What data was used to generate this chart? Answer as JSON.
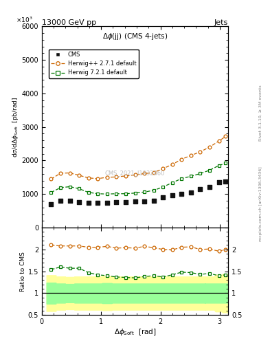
{
  "title_top": "13000 GeV pp",
  "title_right": "Jets",
  "plot_title": "Δϕ(jj) (CMS 4-jets)",
  "watermark": "CMS_2021_I1932460",
  "side_label": "Rivet 3.1.10, ≥ 3M events",
  "side_label2": "mcplots.cern.ch [arXiv:1306.3436]",
  "xlim": [
    0,
    3.14159
  ],
  "ylim_main": [
    0,
    6000
  ],
  "ylim_ratio": [
    0.5,
    2.5
  ],
  "yticks_main": [
    0,
    1000,
    2000,
    3000,
    4000,
    5000,
    6000
  ],
  "yticks_ratio": [
    0.5,
    1.0,
    1.5,
    2.0
  ],
  "x_data": [
    0.157,
    0.314,
    0.471,
    0.628,
    0.785,
    0.942,
    1.099,
    1.257,
    1.414,
    1.571,
    1.728,
    1.885,
    2.042,
    2.199,
    2.356,
    2.513,
    2.67,
    2.827,
    2.985,
    3.1
  ],
  "cms_y": [
    700,
    800,
    800,
    750,
    730,
    730,
    730,
    760,
    760,
    780,
    780,
    810,
    900,
    960,
    1000,
    1050,
    1150,
    1200,
    1350,
    1380
  ],
  "herwig_pp_y": [
    1450,
    1620,
    1630,
    1560,
    1480,
    1460,
    1500,
    1510,
    1540,
    1570,
    1610,
    1640,
    1760,
    1880,
    2040,
    2150,
    2260,
    2400,
    2580,
    2720
  ],
  "herwig7_y": [
    1050,
    1190,
    1220,
    1160,
    1050,
    1010,
    1000,
    1010,
    1010,
    1030,
    1060,
    1110,
    1210,
    1340,
    1460,
    1530,
    1610,
    1710,
    1850,
    1920
  ],
  "cms_err_green_lo": [
    0.76,
    0.78,
    0.79,
    0.78,
    0.78,
    0.78,
    0.77,
    0.78,
    0.78,
    0.78,
    0.78,
    0.78,
    0.78,
    0.78,
    0.78,
    0.78,
    0.78,
    0.78,
    0.78,
    0.78
  ],
  "cms_err_green_hi": [
    1.24,
    1.22,
    1.21,
    1.22,
    1.22,
    1.22,
    1.23,
    1.22,
    1.22,
    1.22,
    1.22,
    1.22,
    1.22,
    1.22,
    1.22,
    1.22,
    1.22,
    1.22,
    1.22,
    1.22
  ],
  "cms_err_yellow_lo": [
    0.59,
    0.62,
    0.63,
    0.62,
    0.62,
    0.62,
    0.61,
    0.62,
    0.62,
    0.62,
    0.62,
    0.62,
    0.62,
    0.62,
    0.62,
    0.62,
    0.62,
    0.62,
    0.58,
    0.56
  ],
  "cms_err_yellow_hi": [
    1.41,
    1.38,
    1.37,
    1.38,
    1.38,
    1.38,
    1.39,
    1.38,
    1.38,
    1.38,
    1.38,
    1.38,
    1.38,
    1.38,
    1.38,
    1.38,
    1.38,
    1.38,
    1.42,
    1.44
  ],
  "herwig_pp_ratio": [
    2.1,
    2.08,
    2.08,
    2.08,
    2.05,
    2.05,
    2.07,
    2.03,
    2.04,
    2.03,
    2.07,
    2.04,
    2.0,
    1.99,
    2.05,
    2.06,
    2.0,
    2.01,
    1.96,
    2.0
  ],
  "herwig7_ratio": [
    1.54,
    1.6,
    1.57,
    1.57,
    1.47,
    1.42,
    1.4,
    1.37,
    1.36,
    1.35,
    1.38,
    1.4,
    1.37,
    1.42,
    1.48,
    1.47,
    1.43,
    1.45,
    1.4,
    1.42
  ],
  "color_cms": "#111111",
  "color_herwig_pp": "#cc6600",
  "color_herwig7": "#007700",
  "color_yellow": "#ffff99",
  "color_green": "#99ff99"
}
